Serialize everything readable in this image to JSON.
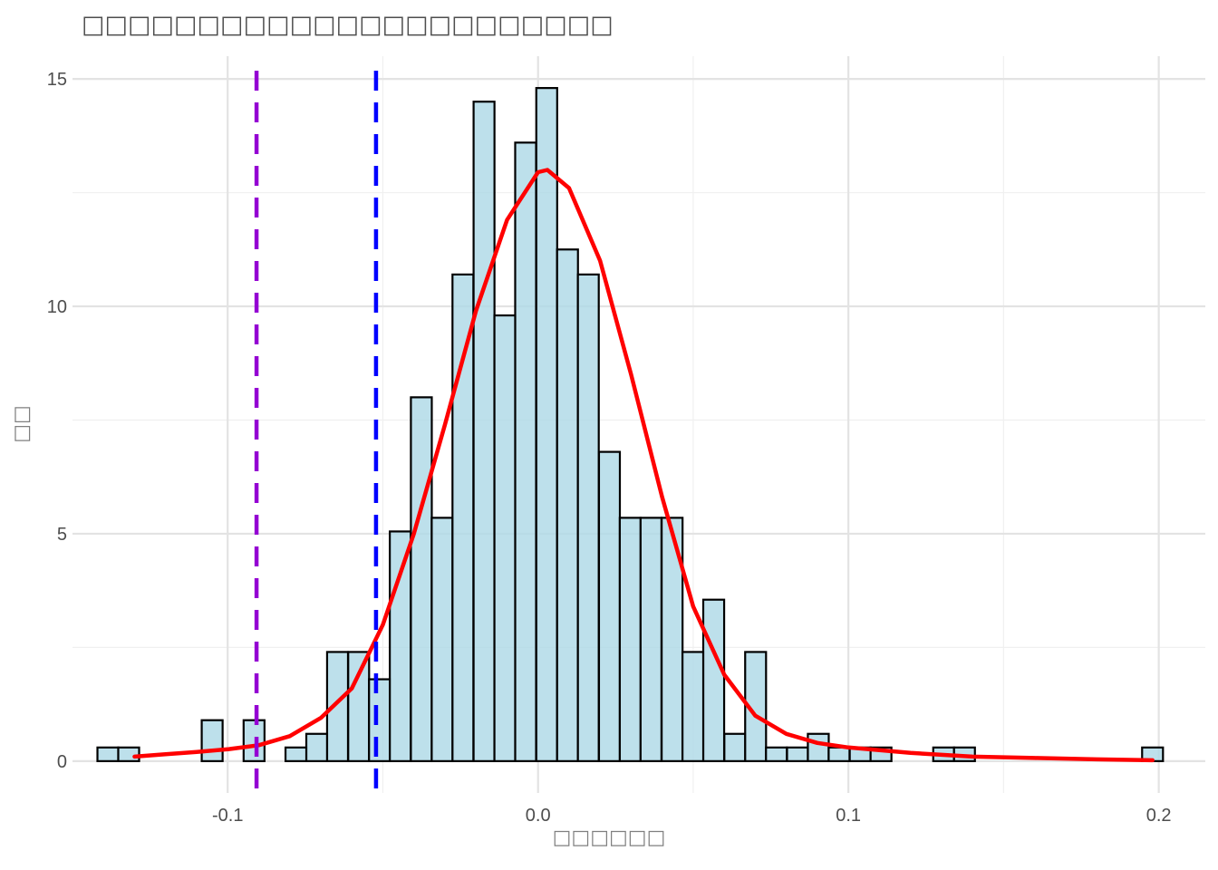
{
  "chart_data": {
    "type": "bar",
    "title": "□□□□□□□□□□□□□□□□□□□□□□□",
    "xlabel": "□□□□□□",
    "ylabel": "□□",
    "xlim": [
      -0.15,
      0.215
    ],
    "ylim": [
      -0.7,
      15.5
    ],
    "x_ticks": [
      -0.1,
      0.0,
      0.1,
      0.2
    ],
    "x_tick_labels": [
      "-0.1",
      "0.0",
      "0.1",
      "0.2"
    ],
    "y_ticks": [
      0,
      5,
      10,
      15
    ],
    "y_tick_labels": [
      "0",
      "5",
      "10",
      "15"
    ],
    "grid": true,
    "bin_width": 0.00673,
    "bins": [
      {
        "x": -0.1386,
        "y": 0.3
      },
      {
        "x": -0.1319,
        "y": 0.3
      },
      {
        "x": -0.1252,
        "y": 0
      },
      {
        "x": -0.1184,
        "y": 0
      },
      {
        "x": -0.1117,
        "y": 0
      },
      {
        "x": -0.105,
        "y": 0.9
      },
      {
        "x": -0.0982,
        "y": 0
      },
      {
        "x": -0.0915,
        "y": 0.9
      },
      {
        "x": -0.0848,
        "y": 0
      },
      {
        "x": -0.078,
        "y": 0.3
      },
      {
        "x": -0.0713,
        "y": 0.6
      },
      {
        "x": -0.0646,
        "y": 2.4
      },
      {
        "x": -0.0578,
        "y": 2.4
      },
      {
        "x": -0.0511,
        "y": 1.8
      },
      {
        "x": -0.0444,
        "y": 5.05
      },
      {
        "x": -0.0376,
        "y": 8.0
      },
      {
        "x": -0.0309,
        "y": 5.35
      },
      {
        "x": -0.0242,
        "y": 10.7
      },
      {
        "x": -0.0174,
        "y": 14.5
      },
      {
        "x": -0.0107,
        "y": 9.8
      },
      {
        "x": -0.004,
        "y": 13.6
      },
      {
        "x": 0.0028,
        "y": 14.8
      },
      {
        "x": 0.0095,
        "y": 11.25
      },
      {
        "x": 0.0162,
        "y": 10.7
      },
      {
        "x": 0.023,
        "y": 6.8
      },
      {
        "x": 0.0297,
        "y": 5.35
      },
      {
        "x": 0.0364,
        "y": 5.35
      },
      {
        "x": 0.0432,
        "y": 5.35
      },
      {
        "x": 0.0499,
        "y": 2.4
      },
      {
        "x": 0.0566,
        "y": 3.55
      },
      {
        "x": 0.0634,
        "y": 0.6
      },
      {
        "x": 0.0701,
        "y": 2.4
      },
      {
        "x": 0.0768,
        "y": 0.3
      },
      {
        "x": 0.0836,
        "y": 0.3
      },
      {
        "x": 0.0903,
        "y": 0.6
      },
      {
        "x": 0.097,
        "y": 0.3
      },
      {
        "x": 0.1038,
        "y": 0.3
      },
      {
        "x": 0.1105,
        "y": 0.3
      },
      {
        "x": 0.1172,
        "y": 0
      },
      {
        "x": 0.124,
        "y": 0
      },
      {
        "x": 0.1307,
        "y": 0.3
      },
      {
        "x": 0.1374,
        "y": 0.3
      },
      {
        "x": 0.1442,
        "y": 0
      },
      {
        "x": 0.1509,
        "y": 0
      },
      {
        "x": 0.1576,
        "y": 0
      },
      {
        "x": 0.1644,
        "y": 0
      },
      {
        "x": 0.1711,
        "y": 0
      },
      {
        "x": 0.1778,
        "y": 0
      },
      {
        "x": 0.1846,
        "y": 0
      },
      {
        "x": 0.1913,
        "y": 0
      },
      {
        "x": 0.198,
        "y": 0.3
      }
    ],
    "density_curve": {
      "color": "#ff0000",
      "points": [
        [
          -0.13,
          0.1
        ],
        [
          -0.12,
          0.15
        ],
        [
          -0.11,
          0.2
        ],
        [
          -0.1,
          0.26
        ],
        [
          -0.09,
          0.35
        ],
        [
          -0.08,
          0.55
        ],
        [
          -0.07,
          0.95
        ],
        [
          -0.06,
          1.6
        ],
        [
          -0.05,
          3.0
        ],
        [
          -0.04,
          5.0
        ],
        [
          -0.03,
          7.4
        ],
        [
          -0.02,
          9.9
        ],
        [
          -0.01,
          11.9
        ],
        [
          0.0,
          12.95
        ],
        [
          0.003,
          13.0
        ],
        [
          0.01,
          12.6
        ],
        [
          0.02,
          11.0
        ],
        [
          0.03,
          8.5
        ],
        [
          0.04,
          5.8
        ],
        [
          0.05,
          3.4
        ],
        [
          0.06,
          1.9
        ],
        [
          0.07,
          1.0
        ],
        [
          0.08,
          0.6
        ],
        [
          0.09,
          0.4
        ],
        [
          0.1,
          0.3
        ],
        [
          0.11,
          0.24
        ],
        [
          0.12,
          0.18
        ],
        [
          0.14,
          0.1
        ],
        [
          0.16,
          0.07
        ],
        [
          0.18,
          0.04
        ],
        [
          0.198,
          0.02
        ]
      ]
    },
    "vlines": [
      {
        "x": -0.0907,
        "color": "#9400d3",
        "style": "dashed"
      },
      {
        "x": -0.0522,
        "color": "#0000ff",
        "style": "dashed"
      }
    ],
    "bar_fill": "#add8e6",
    "bar_stroke": "#000000"
  }
}
